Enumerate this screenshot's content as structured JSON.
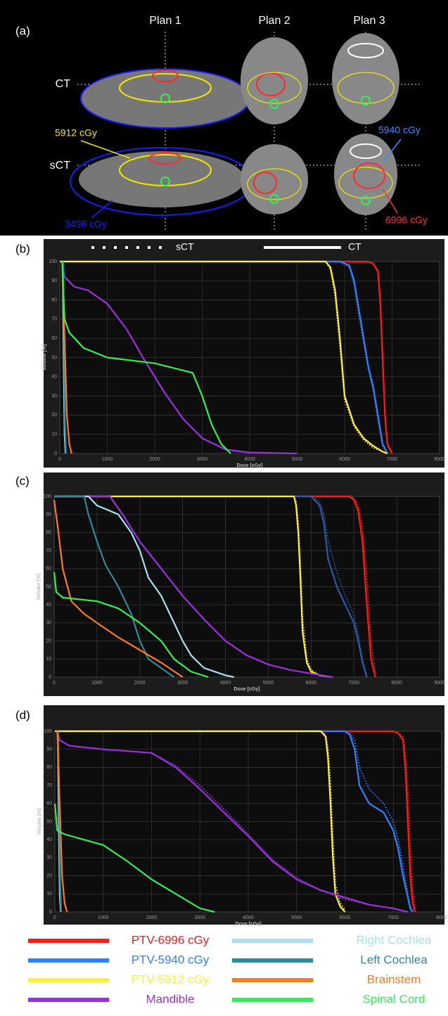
{
  "panel_a": {
    "label": "(a)",
    "columns": [
      "Plan 1",
      "Plan 2",
      "Plan 3"
    ],
    "rows": [
      "CT",
      "sCT"
    ],
    "annotations": [
      {
        "text": "5912 cGy",
        "color": "#f2e600"
      },
      {
        "text": "3498 cGy",
        "color": "#1a1aff"
      },
      {
        "text": "5940 cGy",
        "color": "#3a8cff"
      },
      {
        "text": "6996 cGy",
        "color": "#ff2a2a"
      }
    ]
  },
  "chart_data": [
    {
      "type": "line",
      "panel_label": "(b)",
      "x_label": "Dose [cGy]",
      "y_label": "Volume [%]",
      "line_styles": [
        {
          "label": "sCT",
          "style": "dotted"
        },
        {
          "label": "CT",
          "style": "solid"
        }
      ],
      "xlim": [
        0,
        8000
      ],
      "xticks": [
        0,
        1000,
        2000,
        3000,
        4000,
        5000,
        6000,
        7000,
        8000
      ],
      "ylim": [
        0,
        100
      ],
      "yticks": [
        0,
        10,
        20,
        30,
        40,
        50,
        60,
        70,
        80,
        90,
        100
      ],
      "grid": true,
      "series": [
        {
          "name": "PTV-6996 cGy",
          "color": "#ff1a1a",
          "x": [
            0,
            6500,
            6600,
            6700,
            6750,
            6800,
            6850,
            6900,
            7000
          ],
          "values": [
            100,
            100,
            99,
            95,
            80,
            50,
            20,
            5,
            0
          ],
          "sct_values": [
            100,
            100,
            99,
            94,
            78,
            48,
            18,
            4,
            0
          ]
        },
        {
          "name": "PTV-5940 cGy",
          "color": "#2f80ff",
          "x": [
            0,
            5900,
            6100,
            6200,
            6300,
            6400,
            6500,
            6600,
            6700,
            6800,
            6900
          ],
          "values": [
            100,
            100,
            98,
            90,
            75,
            60,
            45,
            35,
            20,
            5,
            0
          ],
          "sct_values": [
            100,
            100,
            97,
            88,
            72,
            58,
            44,
            33,
            18,
            4,
            0
          ]
        },
        {
          "name": "PTV-5912 cGy",
          "color": "#ffee33",
          "x": [
            0,
            5600,
            5700,
            5800,
            5900,
            6000,
            6200,
            6400,
            6600,
            6800,
            6900
          ],
          "values": [
            100,
            100,
            97,
            85,
            60,
            30,
            15,
            8,
            4,
            1,
            0
          ],
          "sct_values": [
            100,
            100,
            96,
            82,
            56,
            28,
            14,
            7,
            3,
            1,
            0
          ]
        },
        {
          "name": "Mandible",
          "color": "#9b30e0",
          "x": [
            50,
            100,
            300,
            600,
            1000,
            1400,
            1800,
            2200,
            2600,
            3000,
            3500,
            4000,
            5000
          ],
          "values": [
            100,
            92,
            87,
            85,
            78,
            65,
            48,
            32,
            18,
            8,
            2,
            0.5,
            0
          ]
        },
        {
          "name": "Right Cochlea",
          "color": "#a8e0f0",
          "x": [
            60,
            80,
            100,
            120
          ],
          "values": [
            100,
            50,
            10,
            0
          ]
        },
        {
          "name": "Left Cochlea",
          "color": "#2e8a9a",
          "x": [
            70,
            90,
            110,
            130
          ],
          "values": [
            100,
            60,
            15,
            0
          ]
        },
        {
          "name": "Brainstem",
          "color": "#ff7a1a",
          "x": [
            50,
            100,
            150,
            200,
            250
          ],
          "values": [
            100,
            60,
            20,
            5,
            0
          ]
        },
        {
          "name": "Spinal Cord",
          "color": "#33ee55",
          "x": [
            50,
            100,
            200,
            500,
            1000,
            2000,
            2800,
            3000,
            3200,
            3400,
            3600
          ],
          "values": [
            100,
            70,
            63,
            55,
            50,
            47,
            42,
            30,
            15,
            5,
            0
          ]
        }
      ]
    },
    {
      "type": "line",
      "panel_label": "(c)",
      "x_label": "Dose [cGy]",
      "y_label": "Volume [%]",
      "xlim": [
        0,
        9000
      ],
      "xticks": [
        0,
        1000,
        2000,
        3000,
        4000,
        5000,
        6000,
        7000,
        8000,
        9000
      ],
      "ylim": [
        0,
        100
      ],
      "yticks": [
        0,
        10,
        20,
        30,
        40,
        50,
        60,
        70,
        80,
        90,
        100
      ],
      "grid": true,
      "series": [
        {
          "color": "#ff1a1a",
          "x": [
            0,
            6900,
            7000,
            7100,
            7200,
            7300,
            7400,
            7500
          ],
          "values": [
            100,
            100,
            98,
            92,
            75,
            40,
            10,
            0
          ],
          "sct_values": [
            100,
            100,
            99,
            95,
            82,
            55,
            20,
            2
          ]
        },
        {
          "color": "#2a5aa8",
          "x": [
            0,
            6000,
            6200,
            6300,
            6400,
            6600,
            6800,
            7000,
            7100,
            7200,
            7300
          ],
          "values": [
            100,
            100,
            95,
            85,
            65,
            50,
            40,
            30,
            20,
            8,
            0
          ],
          "sct_values": [
            100,
            100,
            97,
            90,
            75,
            58,
            45,
            34,
            24,
            10,
            1
          ]
        },
        {
          "color": "#ffee33",
          "x": [
            0,
            5600,
            5650,
            5700,
            5750,
            5800,
            5900,
            6000,
            6200,
            6500
          ],
          "values": [
            100,
            100,
            95,
            80,
            55,
            25,
            8,
            3,
            1,
            0
          ],
          "sct_values": [
            100,
            100,
            97,
            85,
            62,
            32,
            10,
            4,
            1,
            0
          ]
        },
        {
          "color": "#9b30e0",
          "x": [
            0,
            1300,
            1600,
            2000,
            2500,
            3000,
            3500,
            4000,
            4500,
            5000,
            5500,
            6000,
            6500
          ],
          "values": [
            100,
            100,
            90,
            75,
            60,
            45,
            32,
            20,
            12,
            7,
            4,
            2,
            0
          ]
        },
        {
          "color": "#a8e0f0",
          "x": [
            0,
            800,
            1000,
            1200,
            1500,
            1800,
            2000,
            2200,
            2500,
            2800,
            3000,
            3200,
            3500,
            4000,
            4200
          ],
          "values": [
            100,
            100,
            95,
            93,
            90,
            80,
            70,
            55,
            45,
            30,
            20,
            12,
            5,
            1,
            0
          ]
        },
        {
          "color": "#2e8a9a",
          "x": [
            0,
            700,
            800,
            1000,
            1200,
            1500,
            1800,
            2000,
            2200,
            2500,
            2800
          ],
          "values": [
            100,
            100,
            90,
            75,
            62,
            50,
            35,
            20,
            10,
            5,
            0
          ]
        },
        {
          "color": "#ff7a1a",
          "x": [
            0,
            100,
            200,
            400,
            700,
            1000,
            1500,
            2000,
            2500,
            3000
          ],
          "values": [
            98,
            80,
            60,
            42,
            35,
            30,
            22,
            15,
            8,
            0
          ]
        },
        {
          "color": "#33ee55",
          "x": [
            0,
            50,
            200,
            600,
            1000,
            1500,
            2000,
            2500,
            2800,
            3200,
            3600
          ],
          "values": [
            58,
            47,
            44,
            43,
            42,
            38,
            30,
            20,
            10,
            3,
            0
          ]
        }
      ]
    },
    {
      "type": "line",
      "panel_label": "(d)",
      "x_label": "Dose [cGy]",
      "y_label": "Volume [%]",
      "xlim": [
        0,
        8000
      ],
      "xticks": [
        0,
        1000,
        2000,
        3000,
        4000,
        5000,
        6000,
        7000,
        8000
      ],
      "ylim": [
        0,
        100
      ],
      "yticks": [
        0,
        10,
        20,
        30,
        40,
        50,
        60,
        70,
        80,
        90,
        100
      ],
      "grid": true,
      "series": [
        {
          "color": "#ff1a1a",
          "x": [
            0,
            7000,
            7100,
            7200,
            7250,
            7300,
            7350,
            7400,
            7450
          ],
          "values": [
            100,
            100,
            99,
            95,
            80,
            50,
            20,
            5,
            0
          ],
          "sct_values": [
            100,
            100,
            99,
            97,
            88,
            65,
            35,
            12,
            2
          ]
        },
        {
          "color": "#2f80ff",
          "x": [
            0,
            6000,
            6100,
            6200,
            6300,
            6500,
            6800,
            7000,
            7100,
            7200,
            7300,
            7350,
            7400
          ],
          "values": [
            100,
            100,
            98,
            90,
            70,
            60,
            55,
            45,
            35,
            20,
            8,
            2,
            0
          ],
          "sct_values": [
            100,
            100,
            99,
            95,
            80,
            68,
            60,
            50,
            40,
            25,
            10,
            3,
            1
          ]
        },
        {
          "color": "#ffee33",
          "x": [
            0,
            5500,
            5600,
            5650,
            5700,
            5750,
            5800,
            5900,
            6000
          ],
          "values": [
            100,
            100,
            97,
            85,
            60,
            30,
            10,
            3,
            0
          ],
          "sct_values": [
            100,
            100,
            98,
            90,
            70,
            40,
            15,
            5,
            1
          ]
        },
        {
          "color": "#9b30e0",
          "x": [
            50,
            100,
            300,
            1000,
            2000,
            2500,
            3000,
            3500,
            4000,
            4500,
            5000,
            5500,
            6000,
            6500,
            7000,
            7300
          ],
          "values": [
            100,
            95,
            92,
            90,
            88,
            80,
            68,
            55,
            42,
            28,
            18,
            12,
            8,
            4,
            2,
            0
          ],
          "sct_values": [
            100,
            95,
            92,
            90,
            88,
            81,
            70,
            57,
            43,
            29,
            19,
            12,
            7,
            4,
            2,
            0
          ]
        },
        {
          "color": "#a8e0f0",
          "x": [
            60,
            80,
            100,
            120
          ],
          "values": [
            100,
            50,
            10,
            0
          ]
        },
        {
          "color": "#2e8a9a",
          "x": [
            70,
            90,
            110,
            130
          ],
          "values": [
            100,
            60,
            15,
            0
          ]
        },
        {
          "color": "#ff7a1a",
          "x": [
            50,
            100,
            150,
            200,
            250
          ],
          "values": [
            100,
            60,
            20,
            5,
            0
          ]
        },
        {
          "color": "#33ee55",
          "x": [
            0,
            50,
            200,
            600,
            1000,
            1500,
            2000,
            2500,
            3000,
            3300
          ],
          "values": [
            60,
            45,
            43,
            40,
            37,
            28,
            18,
            10,
            2,
            0
          ]
        }
      ]
    }
  ]
}
